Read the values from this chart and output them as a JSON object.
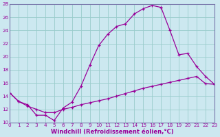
{
  "xlabel": "Windchill (Refroidissement éolien,°C)",
  "bg_color": "#cce8f0",
  "grid_color": "#99cccc",
  "line_color": "#990099",
  "spine_color": "#7777aa",
  "xlim": [
    0,
    23
  ],
  "ylim": [
    10,
    28
  ],
  "xticks": [
    0,
    1,
    2,
    3,
    4,
    5,
    6,
    7,
    8,
    9,
    10,
    11,
    12,
    13,
    14,
    15,
    16,
    17,
    18,
    19,
    20,
    21,
    22,
    23
  ],
  "yticks": [
    10,
    12,
    14,
    16,
    18,
    20,
    22,
    24,
    26,
    28
  ],
  "curve1_x": [
    0,
    1,
    2,
    3,
    4,
    5,
    6,
    7,
    8,
    9,
    10,
    11,
    12,
    13,
    14,
    15,
    16,
    17
  ],
  "curve1_y": [
    14.5,
    13.2,
    12.7,
    11.1,
    11.1,
    10.3,
    12.2,
    13.1,
    15.5,
    18.7,
    21.7,
    23.4,
    24.6,
    25.0,
    26.5,
    27.3,
    27.8,
    27.5
  ],
  "curve2_x": [
    0,
    1,
    2,
    3,
    4,
    5,
    6,
    7,
    8,
    9,
    10,
    11,
    12,
    13,
    14,
    15,
    16,
    17,
    18,
    19,
    20,
    21,
    22,
    23
  ],
  "curve2_y": [
    14.5,
    13.2,
    12.5,
    12.0,
    11.5,
    11.5,
    12.0,
    12.3,
    12.7,
    13.0,
    13.3,
    13.6,
    14.0,
    14.4,
    14.8,
    15.2,
    15.5,
    15.8,
    16.1,
    16.4,
    16.7,
    17.0,
    15.9,
    15.8
  ],
  "curve3_x": [
    17,
    18,
    19,
    20,
    21,
    22,
    23
  ],
  "curve3_y": [
    27.5,
    24.0,
    20.3,
    20.5,
    18.5,
    17.0,
    15.8
  ],
  "marker_size": 3,
  "linewidth": 0.9,
  "tick_fontsize": 5.2,
  "xlabel_fontsize": 6.0
}
